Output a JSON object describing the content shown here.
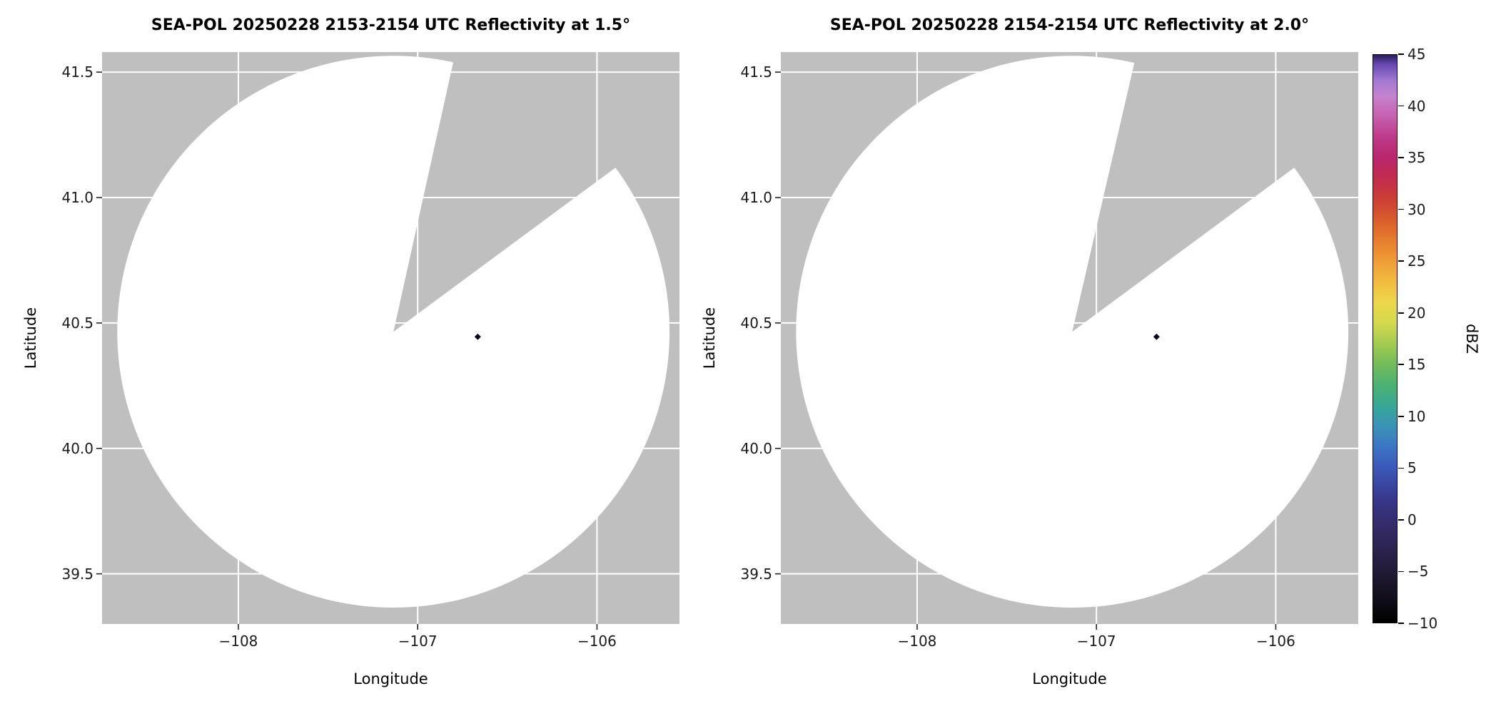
{
  "figure": {
    "background": "#ffffff",
    "panel_background": "#bfbfbf",
    "grid_color": "#ffffff",
    "tick_color": "#262626",
    "text_color": "#000000"
  },
  "chart_data": [
    {
      "type": "radar_ppi",
      "title": "SEA-POL 20250228 2153-2154 UTC Reflectivity at 1.5°",
      "xlabel": "Longitude",
      "ylabel": "Latitude",
      "xlim": [
        -108.76,
        -105.54
      ],
      "ylim": [
        39.3,
        41.58
      ],
      "xticks": [
        -108,
        -107,
        -106
      ],
      "xtick_labels": [
        "−108",
        "−107",
        "−106"
      ],
      "yticks": [
        39.5,
        40.0,
        40.5,
        41.0,
        41.5
      ],
      "ytick_labels": [
        "39.5",
        "40.0",
        "40.5",
        "41.0",
        "41.5"
      ],
      "grid": true,
      "coverage_color": "#ffffff",
      "radar_center": {
        "lon": -107.135,
        "lat": 40.465
      },
      "coverage_radius_deg_lat": 1.1,
      "missing_sector_azimuth_deg": [
        12.5,
        53.5
      ],
      "echo_marker": {
        "lon": -106.665,
        "lat": 40.445,
        "color": "#0c0a18",
        "shape": "diamond"
      }
    },
    {
      "type": "radar_ppi",
      "title": "SEA-POL 20250228 2154-2154 UTC Reflectivity at 2.0°",
      "xlabel": "Longitude",
      "ylabel": "Latitude",
      "xlim": [
        -108.76,
        -105.54
      ],
      "ylim": [
        39.3,
        41.58
      ],
      "xticks": [
        -108,
        -107,
        -106
      ],
      "xtick_labels": [
        "−108",
        "−107",
        "−106"
      ],
      "yticks": [
        39.5,
        40.0,
        40.5,
        41.0,
        41.5
      ],
      "ytick_labels": [
        "39.5",
        "40.0",
        "40.5",
        "41.0",
        "41.5"
      ],
      "grid": true,
      "coverage_color": "#ffffff",
      "radar_center": {
        "lon": -107.135,
        "lat": 40.465
      },
      "coverage_radius_deg_lat": 1.1,
      "missing_sector_azimuth_deg": [
        13.0,
        53.5
      ],
      "echo_marker": {
        "lon": -106.665,
        "lat": 40.445,
        "color": "#0c0a18",
        "shape": "diamond"
      }
    }
  ],
  "colorbar": {
    "label": "dBZ",
    "min": -10,
    "max": 45,
    "tick_values": [
      45,
      40,
      35,
      30,
      25,
      20,
      15,
      10,
      5,
      0,
      -5,
      -10
    ],
    "tick_labels": [
      "45",
      "40",
      "35",
      "30",
      "25",
      "20",
      "15",
      "10",
      "5",
      "0",
      "−5",
      "−10"
    ],
    "stops": [
      {
        "value": -10,
        "color": "#000000"
      },
      {
        "value": -7,
        "color": "#15121f"
      },
      {
        "value": -4,
        "color": "#271f43"
      },
      {
        "value": -1,
        "color": "#332a63"
      },
      {
        "value": 2,
        "color": "#37388c"
      },
      {
        "value": 5,
        "color": "#3b58b8"
      },
      {
        "value": 7,
        "color": "#3c74c4"
      },
      {
        "value": 9,
        "color": "#3a93b6"
      },
      {
        "value": 11,
        "color": "#38a795"
      },
      {
        "value": 13,
        "color": "#4bb272"
      },
      {
        "value": 15,
        "color": "#72bc5a"
      },
      {
        "value": 17,
        "color": "#a3cb50"
      },
      {
        "value": 19,
        "color": "#d4d94d"
      },
      {
        "value": 21,
        "color": "#eed74a"
      },
      {
        "value": 23,
        "color": "#f2bc40"
      },
      {
        "value": 25,
        "color": "#ef9d36"
      },
      {
        "value": 27,
        "color": "#e67e2d"
      },
      {
        "value": 29,
        "color": "#d95d2b"
      },
      {
        "value": 31,
        "color": "#cc3f34"
      },
      {
        "value": 33,
        "color": "#c22c4d"
      },
      {
        "value": 35,
        "color": "#ba266b"
      },
      {
        "value": 37,
        "color": "#bd3a8a"
      },
      {
        "value": 39,
        "color": "#c65fae"
      },
      {
        "value": 41,
        "color": "#c583cf"
      },
      {
        "value": 42.5,
        "color": "#a379d2"
      },
      {
        "value": 44,
        "color": "#6a4cb4"
      },
      {
        "value": 45,
        "color": "#2a1e5c"
      }
    ]
  }
}
